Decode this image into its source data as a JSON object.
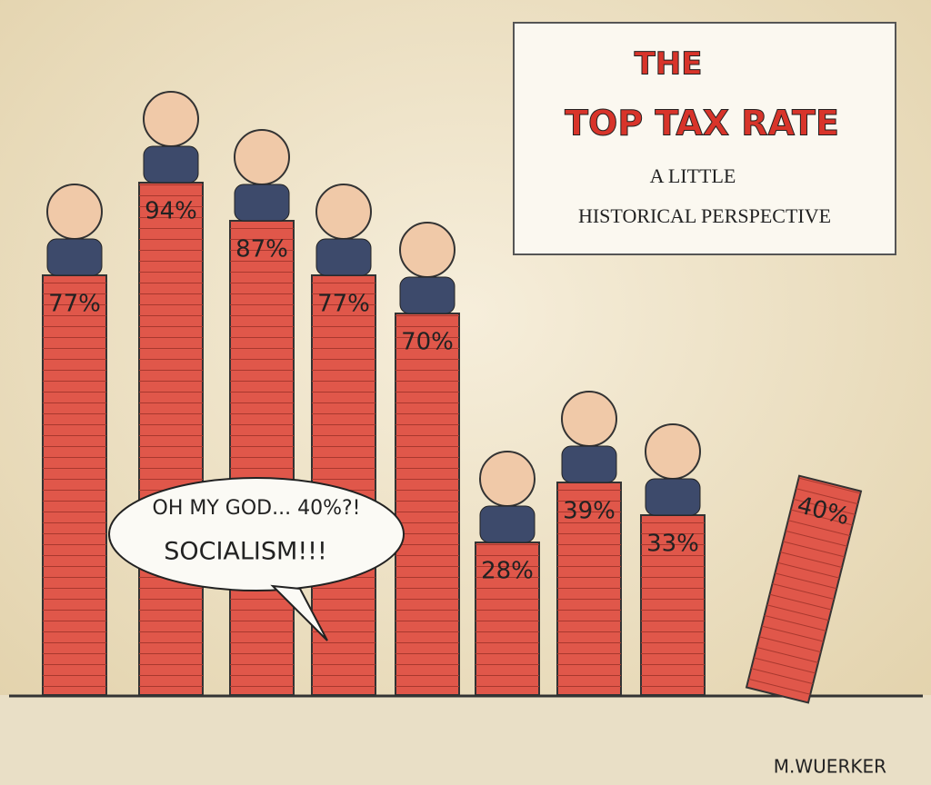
{
  "chart_data": {
    "type": "bar",
    "title_lines": [
      "THE",
      "TOP TAX RATE"
    ],
    "subtitle_lines": [
      "A LITTLE",
      "HISTORICAL PERSPECTIVE"
    ],
    "values": [
      77,
      94,
      87,
      77,
      70,
      28,
      39,
      33,
      40
    ],
    "value_labels": [
      "77%",
      "94%",
      "87%",
      "77%",
      "70%",
      "28%",
      "39%",
      "33%",
      "40%"
    ],
    "color": "#e0574a",
    "annotation_lines": [
      "OH MY GOD... 40%?!",
      "SOCIALISM!!!"
    ],
    "signature": "M.WUERKER"
  }
}
